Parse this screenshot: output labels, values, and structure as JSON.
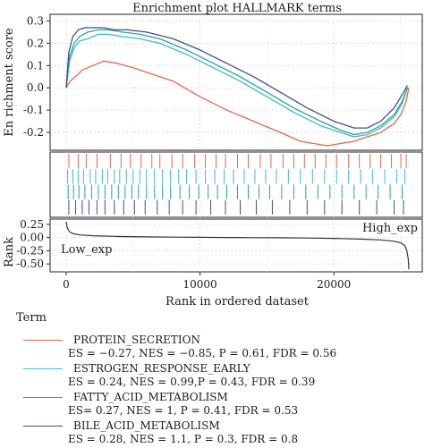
{
  "chart_data": {
    "type": "line",
    "title": "Enrichment plot HALLMARK terms",
    "xlabel": "Rank in ordered dataset",
    "ylabel_top": "En richment score",
    "ylabel_bottom": "Rank",
    "xlim": [
      -1200,
      26600
    ],
    "x_ticks": [
      0,
      10000,
      20000
    ],
    "x_tick_labels": [
      "0",
      "10000",
      "20000"
    ],
    "es_ylim": [
      -0.28,
      0.33
    ],
    "es_ticks": [
      0.3,
      0.2,
      0.1,
      0.0,
      -0.1,
      -0.2
    ],
    "es_tick_labels": [
      "0.3",
      "0.2",
      "0.1",
      "0.0",
      "-0.1",
      "-0.2"
    ],
    "rank_ylim": [
      -0.65,
      0.35
    ],
    "rank_ticks": [
      0.25,
      0.0,
      -0.25,
      -0.5
    ],
    "rank_tick_labels": [
      "0.25",
      "0.00",
      "-0.25",
      "-0.50"
    ],
    "annotations": {
      "low": "Low_exp",
      "high": "High_exp"
    },
    "legend_title": "Term",
    "series": [
      {
        "name": "PROTEIN_SECRETION",
        "stats": "ES = −0.27, NES = −0.85, P = 0.61, FDR = 0.56",
        "color": "#e8654d",
        "x": [
          0,
          300,
          700,
          1200,
          2000,
          2800,
          3800,
          5000,
          6500,
          8000,
          10000,
          12000,
          14000,
          16000,
          17500,
          18500,
          19500,
          20500,
          21500,
          22500,
          23500,
          24500,
          25000,
          25400,
          25600
        ],
        "y": [
          0.0,
          0.03,
          0.05,
          0.08,
          0.1,
          0.12,
          0.11,
          0.09,
          0.06,
          0.03,
          -0.04,
          -0.1,
          -0.15,
          -0.2,
          -0.24,
          -0.25,
          -0.26,
          -0.25,
          -0.24,
          -0.22,
          -0.2,
          -0.16,
          -0.12,
          -0.06,
          0.0
        ],
        "hits": [
          200,
          900,
          1500,
          2300,
          3300,
          4100,
          4800,
          5600,
          6400,
          7000,
          7900,
          8700,
          9600,
          10400,
          11200,
          11900,
          12800,
          13600,
          14500,
          15300,
          16200,
          17000,
          17800,
          18600,
          19400,
          20200,
          21100,
          21900,
          22700,
          23500,
          24300,
          25000,
          25400
        ]
      },
      {
        "name": "ESTROGEN_RESPONSE_EARLY",
        "stats": "ES = 0.24, NES = 0.99,P = 0.43, FDR = 0.39",
        "color": "#3fb6d8",
        "x": [
          0,
          250,
          600,
          1000,
          1600,
          2400,
          3200,
          4200,
          5500,
          7000,
          9000,
          11000,
          13000,
          15000,
          17000,
          19000,
          20500,
          21500,
          22500,
          23500,
          24500,
          25100,
          25500
        ],
        "y": [
          0.0,
          0.12,
          0.18,
          0.21,
          0.22,
          0.24,
          0.24,
          0.23,
          0.22,
          0.2,
          0.15,
          0.09,
          0.03,
          -0.04,
          -0.11,
          -0.17,
          -0.2,
          -0.22,
          -0.21,
          -0.18,
          -0.13,
          -0.07,
          0.0
        ],
        "hits": [
          100,
          500,
          900,
          1300,
          1800,
          2200,
          2700,
          3100,
          3600,
          4000,
          4500,
          5000,
          5500,
          6000,
          6600,
          7200,
          7800,
          8400,
          9000,
          9700,
          10400,
          11100,
          11800,
          12500,
          13300,
          14100,
          14900,
          15700,
          16600,
          17500,
          18400,
          19300,
          20200,
          21100,
          22000,
          22900,
          23800,
          24700,
          25300
        ]
      },
      {
        "name": "FATTY_ACID_METABOLISM",
        "stats": "ES= 0.27, NES = 1, P = 0.41, FDR = 0.53",
        "color": "#26a68c",
        "x": [
          0,
          250,
          600,
          1000,
          1600,
          2400,
          3200,
          4200,
          5500,
          7000,
          9000,
          11000,
          13000,
          15000,
          17000,
          19000,
          20500,
          21500,
          22500,
          23500,
          24500,
          25100,
          25500
        ],
        "y": [
          0.0,
          0.14,
          0.2,
          0.23,
          0.25,
          0.26,
          0.26,
          0.25,
          0.24,
          0.22,
          0.17,
          0.11,
          0.05,
          -0.02,
          -0.09,
          -0.15,
          -0.19,
          -0.21,
          -0.2,
          -0.17,
          -0.12,
          -0.06,
          0.0
        ],
        "hits": [
          150,
          550,
          950,
          1400,
          1900,
          2400,
          2900,
          3400,
          3900,
          4400,
          4900,
          5400,
          6000,
          6600,
          7200,
          7800,
          8500,
          9200,
          9900,
          10600,
          11300,
          12000,
          12800,
          13600,
          14400,
          15200,
          16100,
          17000,
          17900,
          18800,
          19700,
          20600,
          21500,
          22400,
          23300,
          24200,
          25100
        ]
      },
      {
        "name": "BILE_ACID_METABOLISM",
        "stats": "ES = 0.28, NES = 1.1, P = 0.3, FDR = 0.8",
        "color": "#3d4d8c",
        "x": [
          0,
          200,
          500,
          900,
          1400,
          2000,
          2800,
          3600,
          4600,
          6000,
          8000,
          10000,
          12000,
          14000,
          16000,
          18000,
          20000,
          21500,
          22500,
          23500,
          24500,
          25000,
          25500
        ],
        "y": [
          0.0,
          0.16,
          0.23,
          0.26,
          0.27,
          0.27,
          0.27,
          0.26,
          0.26,
          0.25,
          0.22,
          0.17,
          0.11,
          0.05,
          -0.02,
          -0.09,
          -0.15,
          -0.18,
          -0.18,
          -0.15,
          -0.09,
          -0.04,
          0.01
        ],
        "hits": [
          200,
          700,
          1200,
          1700,
          2300,
          2900,
          3600,
          4300,
          5100,
          5900,
          6800,
          7700,
          8700,
          9700,
          10800,
          11900,
          13000,
          14200,
          15400,
          16700,
          18000,
          19300,
          20600,
          21900,
          23200,
          24500,
          25200
        ]
      }
    ],
    "rank_curve": {
      "color": "#333333",
      "x": [
        0,
        60,
        150,
        300,
        600,
        1000,
        2000,
        4000,
        6000,
        8000,
        10000,
        12000,
        13000,
        14000,
        16000,
        18000,
        20000,
        22000,
        23500,
        24500,
        25000,
        25300,
        25450,
        25550,
        25600
      ],
      "y": [
        0.3,
        0.2,
        0.15,
        0.1,
        0.07,
        0.05,
        0.035,
        0.02,
        0.012,
        0.008,
        0.004,
        0.001,
        0.0,
        -0.002,
        -0.005,
        -0.01,
        -0.016,
        -0.03,
        -0.045,
        -0.07,
        -0.1,
        -0.15,
        -0.25,
        -0.4,
        -0.6
      ]
    }
  }
}
